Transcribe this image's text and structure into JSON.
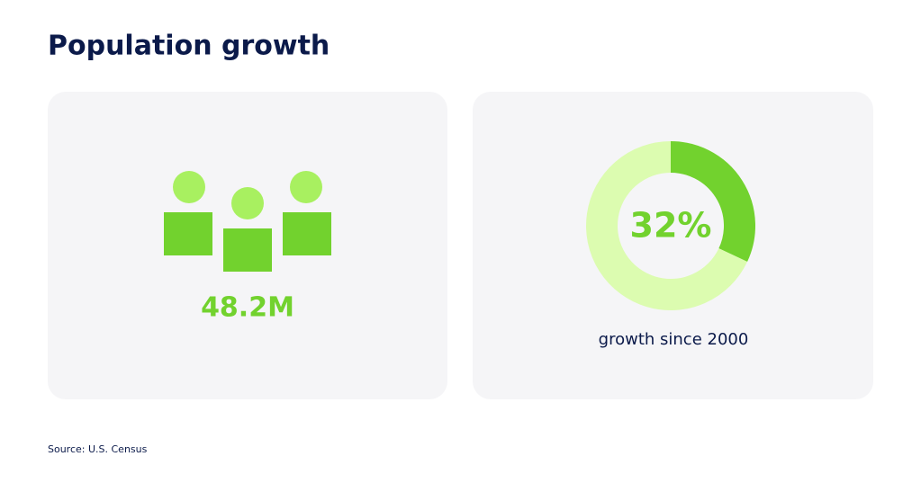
{
  "title": "Population growth",
  "population": {
    "label": "48.2M"
  },
  "chart_data": {
    "type": "donut",
    "values": [
      32,
      68
    ],
    "colors": [
      "#72d22e",
      "#dcfcb0"
    ],
    "center_label": "32%",
    "caption": "growth since 2000"
  },
  "source": "Source: U.S. Census"
}
